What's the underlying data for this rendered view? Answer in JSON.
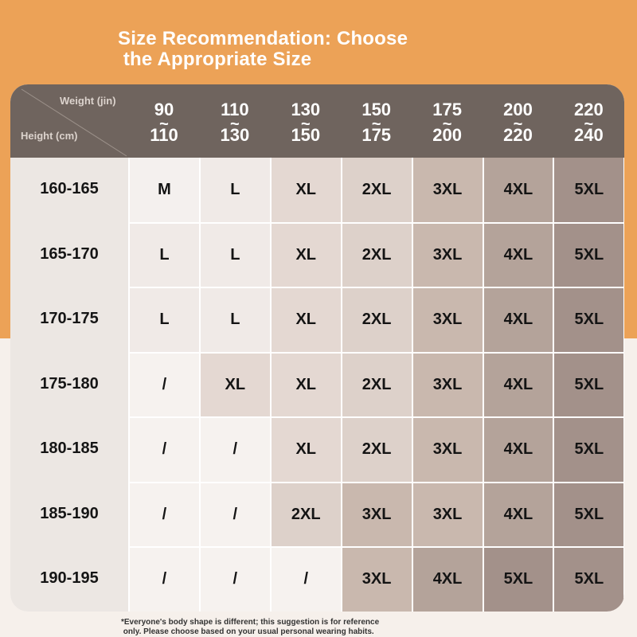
{
  "title": "Size Recommendation: Choose\n the Appropriate Size",
  "header": {
    "weight_label": "Weight (jin)",
    "height_label": "Height (cm)",
    "weights": [
      {
        "top": "90",
        "bottom": "110"
      },
      {
        "top": "110",
        "bottom": "130"
      },
      {
        "top": "130",
        "bottom": "150"
      },
      {
        "top": "150",
        "bottom": "175"
      },
      {
        "top": "175",
        "bottom": "200"
      },
      {
        "top": "200",
        "bottom": "220"
      },
      {
        "top": "220",
        "bottom": "240"
      }
    ]
  },
  "rows": [
    {
      "height": "160-165",
      "sizes": [
        "M",
        "L",
        "XL",
        "2XL",
        "3XL",
        "4XL",
        "5XL"
      ]
    },
    {
      "height": "165-170",
      "sizes": [
        "L",
        "L",
        "XL",
        "2XL",
        "3XL",
        "4XL",
        "5XL"
      ]
    },
    {
      "height": "170-175",
      "sizes": [
        "L",
        "L",
        "XL",
        "2XL",
        "3XL",
        "4XL",
        "5XL"
      ]
    },
    {
      "height": "175-180",
      "sizes": [
        "/",
        "XL",
        "XL",
        "2XL",
        "3XL",
        "4XL",
        "5XL"
      ]
    },
    {
      "height": "180-185",
      "sizes": [
        "/",
        "/",
        "XL",
        "2XL",
        "3XL",
        "4XL",
        "5XL"
      ]
    },
    {
      "height": "185-190",
      "sizes": [
        "/",
        "/",
        "2XL",
        "3XL",
        "3XL",
        "4XL",
        "5XL"
      ]
    },
    {
      "height": "190-195",
      "sizes": [
        "/",
        "/",
        "/",
        "3XL",
        "4XL",
        "5XL",
        "5XL"
      ]
    }
  ],
  "size_colors": {
    "M": "#f4f0ee",
    "L": "#f0eae7",
    "XL": "#e4d8d2",
    "2XL": "#ddd1ca",
    "3XL": "#c9b8ae",
    "4XL": "#b4a39a",
    "5XL": "#a3918a",
    "/": "#f6f2ef"
  },
  "footnote": "*Everyone's body shape is different; this suggestion is for reference\n only. Please choose based on your usual personal wearing habits."
}
